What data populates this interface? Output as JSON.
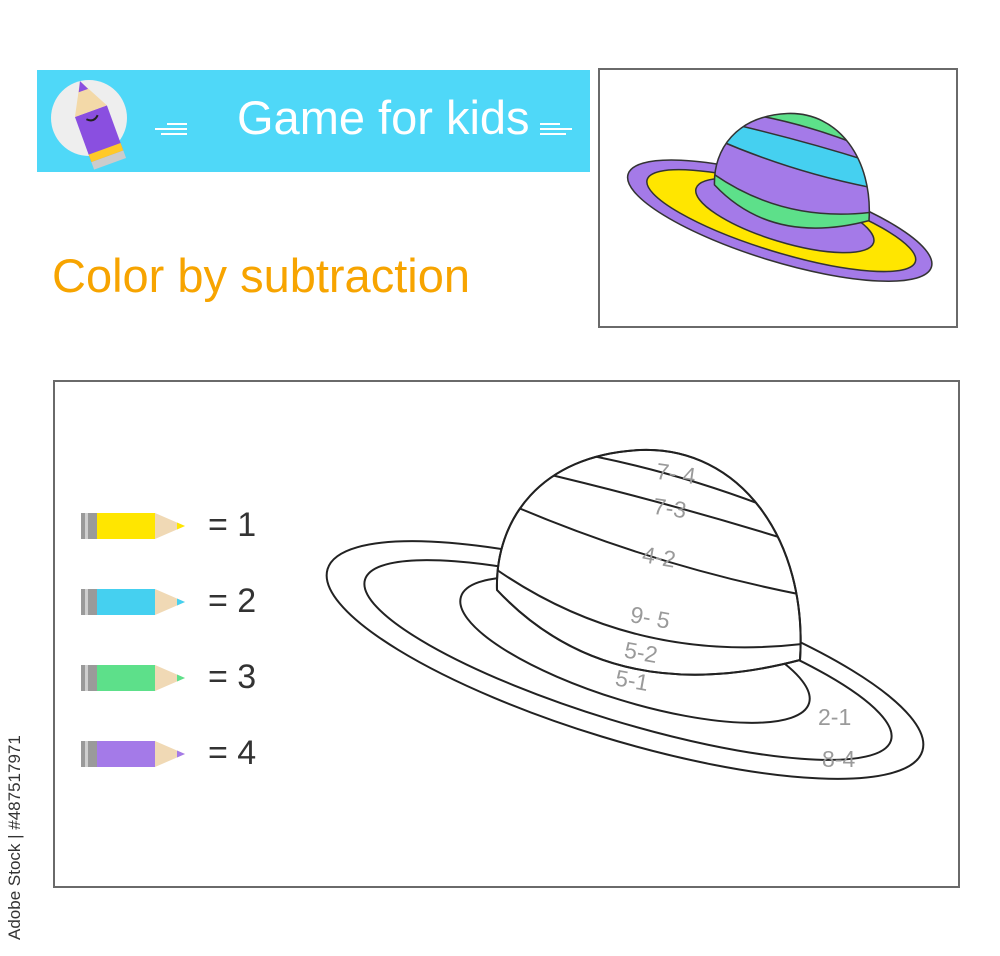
{
  "header": {
    "title": "Game for kids",
    "mascot_icon": "pencil-mascot-icon"
  },
  "subtitle": "Color by subtraction",
  "colors": {
    "banner": "#4fd8f8",
    "subtitle": "#f7a400",
    "yellow": "#ffe600",
    "blue": "#45d0f0",
    "green": "#5de08a",
    "purple": "#a47ae8"
  },
  "legend": [
    {
      "color": "yellow",
      "label": "= 1"
    },
    {
      "color": "blue",
      "label": "= 2"
    },
    {
      "color": "green",
      "label": "= 3"
    },
    {
      "color": "purple",
      "label": "= 4"
    }
  ],
  "hat": {
    "crown_bands": [
      "7- 4",
      "7-3",
      "4-2",
      "9- 5",
      "5-2"
    ],
    "brim_inner": "5-1",
    "brim_middle": "2-1",
    "brim_outer": "8-4"
  },
  "side_text": "Adobe Stock | #487517971"
}
